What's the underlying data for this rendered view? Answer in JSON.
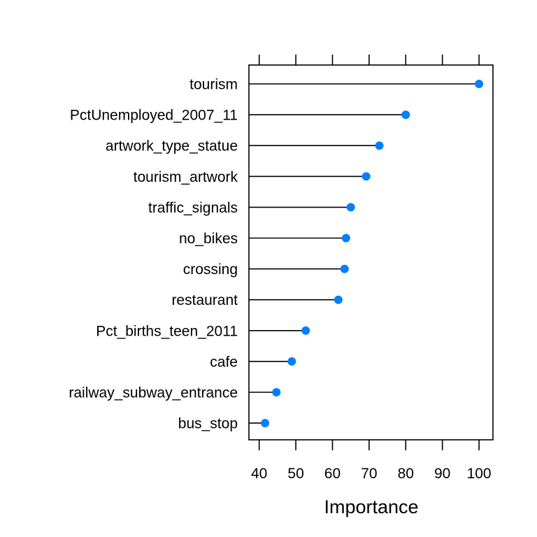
{
  "chart_data": {
    "type": "dotplot",
    "xlabel": "Importance",
    "xlim": [
      37.2,
      103.8
    ],
    "xticks": [
      40,
      50,
      60,
      70,
      80,
      90,
      100
    ],
    "grid": false,
    "colors": {
      "point": "#0080ff",
      "line": "#000000"
    },
    "categories": [
      "tourism",
      "PctUnemployed_2007_11",
      "artwork_type_statue",
      "tourism_artwork",
      "traffic_signals",
      "no_bikes",
      "crossing",
      "restaurant",
      "Pct_births_teen_2011",
      "cafe",
      "railway_subway_entrance",
      "bus_stop"
    ],
    "values": [
      100.0,
      80.0,
      72.8,
      69.2,
      65.0,
      63.7,
      63.3,
      61.6,
      52.7,
      48.9,
      44.7,
      41.6
    ]
  }
}
